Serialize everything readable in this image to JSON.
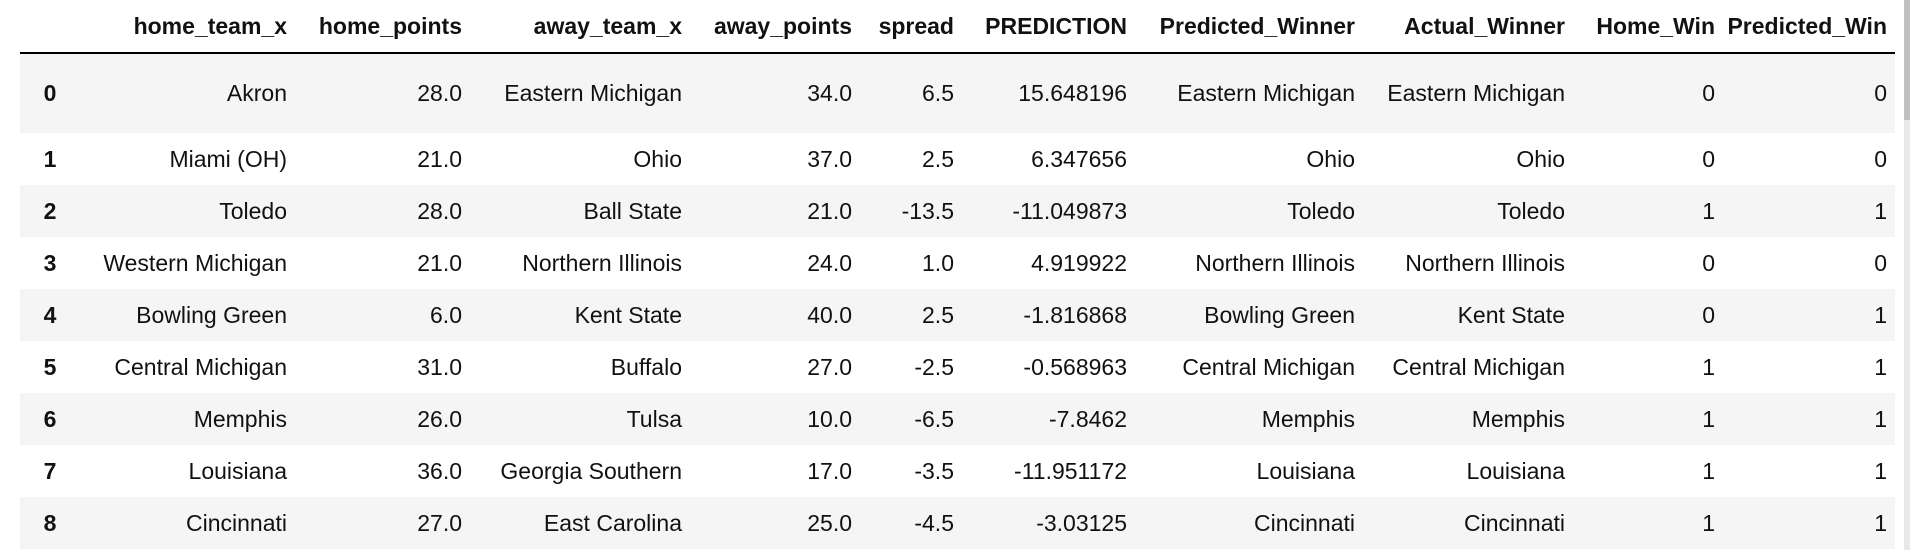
{
  "table": {
    "columns": [
      "",
      "home_team_x",
      "home_points",
      "away_team_x",
      "away_points",
      "spread",
      "PREDICTION",
      "Predicted_Winner",
      "Actual_Winner",
      "Home_Win",
      "Predicted_Win"
    ],
    "rows": [
      {
        "index": "0",
        "home_team_x": "Akron",
        "home_points": "28.0",
        "away_team_x": "Eastern Michigan",
        "away_points": "34.0",
        "spread": "6.5",
        "PREDICTION": "15.648196",
        "Predicted_Winner": "Eastern Michigan",
        "Actual_Winner": "Eastern Michigan",
        "Home_Win": "0",
        "Predicted_Win": "0"
      },
      {
        "index": "1",
        "home_team_x": "Miami (OH)",
        "home_points": "21.0",
        "away_team_x": "Ohio",
        "away_points": "37.0",
        "spread": "2.5",
        "PREDICTION": "6.347656",
        "Predicted_Winner": "Ohio",
        "Actual_Winner": "Ohio",
        "Home_Win": "0",
        "Predicted_Win": "0"
      },
      {
        "index": "2",
        "home_team_x": "Toledo",
        "home_points": "28.0",
        "away_team_x": "Ball State",
        "away_points": "21.0",
        "spread": "-13.5",
        "PREDICTION": "-11.049873",
        "Predicted_Winner": "Toledo",
        "Actual_Winner": "Toledo",
        "Home_Win": "1",
        "Predicted_Win": "1"
      },
      {
        "index": "3",
        "home_team_x": "Western Michigan",
        "home_points": "21.0",
        "away_team_x": "Northern Illinois",
        "away_points": "24.0",
        "spread": "1.0",
        "PREDICTION": "4.919922",
        "Predicted_Winner": "Northern Illinois",
        "Actual_Winner": "Northern Illinois",
        "Home_Win": "0",
        "Predicted_Win": "0"
      },
      {
        "index": "4",
        "home_team_x": "Bowling Green",
        "home_points": "6.0",
        "away_team_x": "Kent State",
        "away_points": "40.0",
        "spread": "2.5",
        "PREDICTION": "-1.816868",
        "Predicted_Winner": "Bowling Green",
        "Actual_Winner": "Kent State",
        "Home_Win": "0",
        "Predicted_Win": "1"
      },
      {
        "index": "5",
        "home_team_x": "Central Michigan",
        "home_points": "31.0",
        "away_team_x": "Buffalo",
        "away_points": "27.0",
        "spread": "-2.5",
        "PREDICTION": "-0.568963",
        "Predicted_Winner": "Central Michigan",
        "Actual_Winner": "Central Michigan",
        "Home_Win": "1",
        "Predicted_Win": "1"
      },
      {
        "index": "6",
        "home_team_x": "Memphis",
        "home_points": "26.0",
        "away_team_x": "Tulsa",
        "away_points": "10.0",
        "spread": "-6.5",
        "PREDICTION": "-7.8462",
        "Predicted_Winner": "Memphis",
        "Actual_Winner": "Memphis",
        "Home_Win": "1",
        "Predicted_Win": "1"
      },
      {
        "index": "7",
        "home_team_x": "Louisiana",
        "home_points": "36.0",
        "away_team_x": "Georgia Southern",
        "away_points": "17.0",
        "spread": "-3.5",
        "PREDICTION": "-11.951172",
        "Predicted_Winner": "Louisiana",
        "Actual_Winner": "Louisiana",
        "Home_Win": "1",
        "Predicted_Win": "1"
      },
      {
        "index": "8",
        "home_team_x": "Cincinnati",
        "home_points": "27.0",
        "away_team_x": "East Carolina",
        "away_points": "25.0",
        "spread": "-4.5",
        "PREDICTION": "-3.03125",
        "Predicted_Winner": "Cincinnati",
        "Actual_Winner": "Cincinnati",
        "Home_Win": "1",
        "Predicted_Win": "1"
      }
    ]
  }
}
